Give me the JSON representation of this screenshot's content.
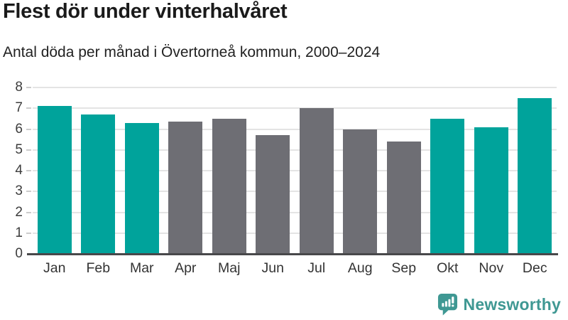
{
  "header": {
    "title": "Flest dör under vinterhalvåret",
    "subtitle": "Antal döda per månad i Övertorneå kommun, 2000–2024"
  },
  "chart_data": {
    "type": "bar",
    "title": "Flest dör under vinterhalvåret",
    "subtitle": "Antal döda per månad i Övertorneå kommun, 2000–2024",
    "categories": [
      "Jan",
      "Feb",
      "Mar",
      "Apr",
      "Maj",
      "Jun",
      "Jul",
      "Aug",
      "Sep",
      "Okt",
      "Nov",
      "Dec"
    ],
    "values": [
      7.1,
      6.7,
      6.3,
      6.35,
      6.5,
      5.7,
      7.0,
      6.0,
      5.4,
      6.5,
      6.1,
      7.5
    ],
    "bar_colors": [
      "#00a39b",
      "#00a39b",
      "#00a39b",
      "#6e6e74",
      "#6e6e74",
      "#6e6e74",
      "#6e6e74",
      "#6e6e74",
      "#6e6e74",
      "#00a39b",
      "#00a39b",
      "#00a39b"
    ],
    "highlighted_categories": [
      "Jan",
      "Feb",
      "Mar",
      "Okt",
      "Nov",
      "Dec"
    ],
    "xlabel": "",
    "ylabel": "",
    "ylim": [
      0,
      8
    ],
    "yticks": [
      0,
      1,
      2,
      3,
      4,
      5,
      6,
      7,
      8
    ],
    "grid": true,
    "legend": false
  },
  "colors": {
    "highlight": "#00a39b",
    "neutral": "#6e6e74",
    "gridline": "#e4e4e4",
    "tick": "#cccccc",
    "axis_line": "#48484a",
    "tick_label": "#3c3c3c",
    "brand": "#3f9893"
  },
  "footer": {
    "brand": "Newsworthy",
    "logo_icon": "newsworthy-bar-chart-speech-bubble-icon"
  }
}
